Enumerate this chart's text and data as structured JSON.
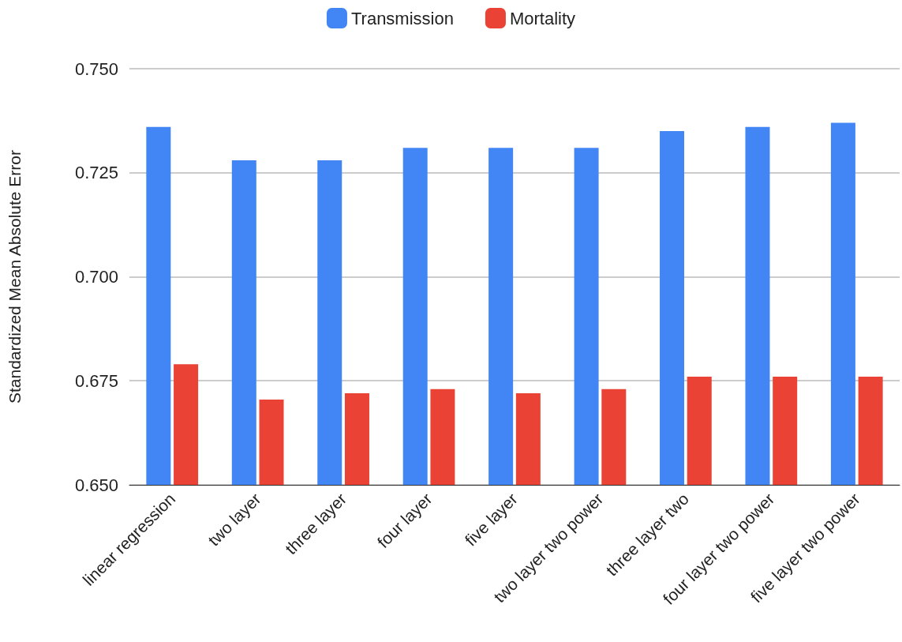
{
  "chart_data": {
    "type": "bar",
    "ylabel": "Standardized Mean Absolute Error",
    "categories": [
      "linear regression",
      "two layer",
      "three layer",
      "four layer",
      "five layer",
      "two layer two power",
      "three layer two",
      "four layer two power",
      "five layer two power"
    ],
    "series": [
      {
        "name": "Transmission",
        "color": "#4285f4",
        "values": [
          0.736,
          0.728,
          0.728,
          0.731,
          0.731,
          0.731,
          0.735,
          0.736,
          0.737
        ]
      },
      {
        "name": "Mortality",
        "color": "#ea4335",
        "values": [
          0.679,
          0.6705,
          0.672,
          0.673,
          0.672,
          0.673,
          0.676,
          0.676,
          0.676
        ]
      }
    ],
    "ylim": [
      0.65,
      0.75
    ],
    "yticks": [
      {
        "value": 0.65,
        "label": "0.650"
      },
      {
        "value": 0.675,
        "label": "0.675"
      },
      {
        "value": 0.7,
        "label": "0.700"
      },
      {
        "value": 0.725,
        "label": "0.725"
      },
      {
        "value": 0.75,
        "label": "0.750"
      }
    ],
    "grid": "y",
    "legend": "top"
  }
}
